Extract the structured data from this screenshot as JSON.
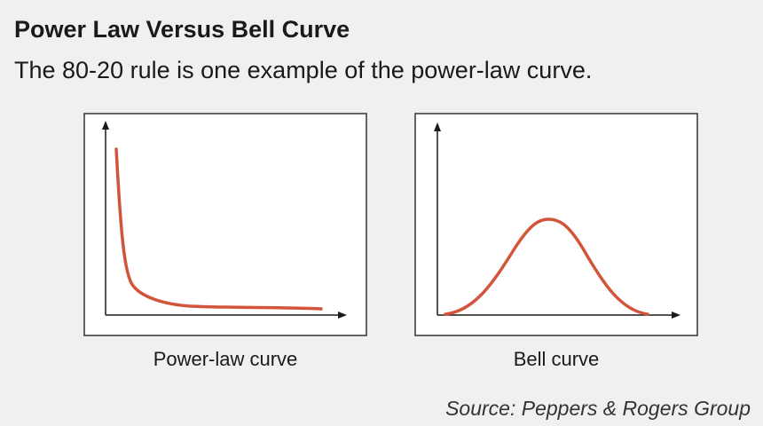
{
  "header": {
    "title": "Power Law Versus Bell Curve",
    "subtitle": "The 80-20 rule is one example of the power-law curve."
  },
  "panels": [
    {
      "label": "Power-law curve"
    },
    {
      "label": "Bell curve"
    }
  ],
  "source": "Source: Peppers & Rogers Group"
}
